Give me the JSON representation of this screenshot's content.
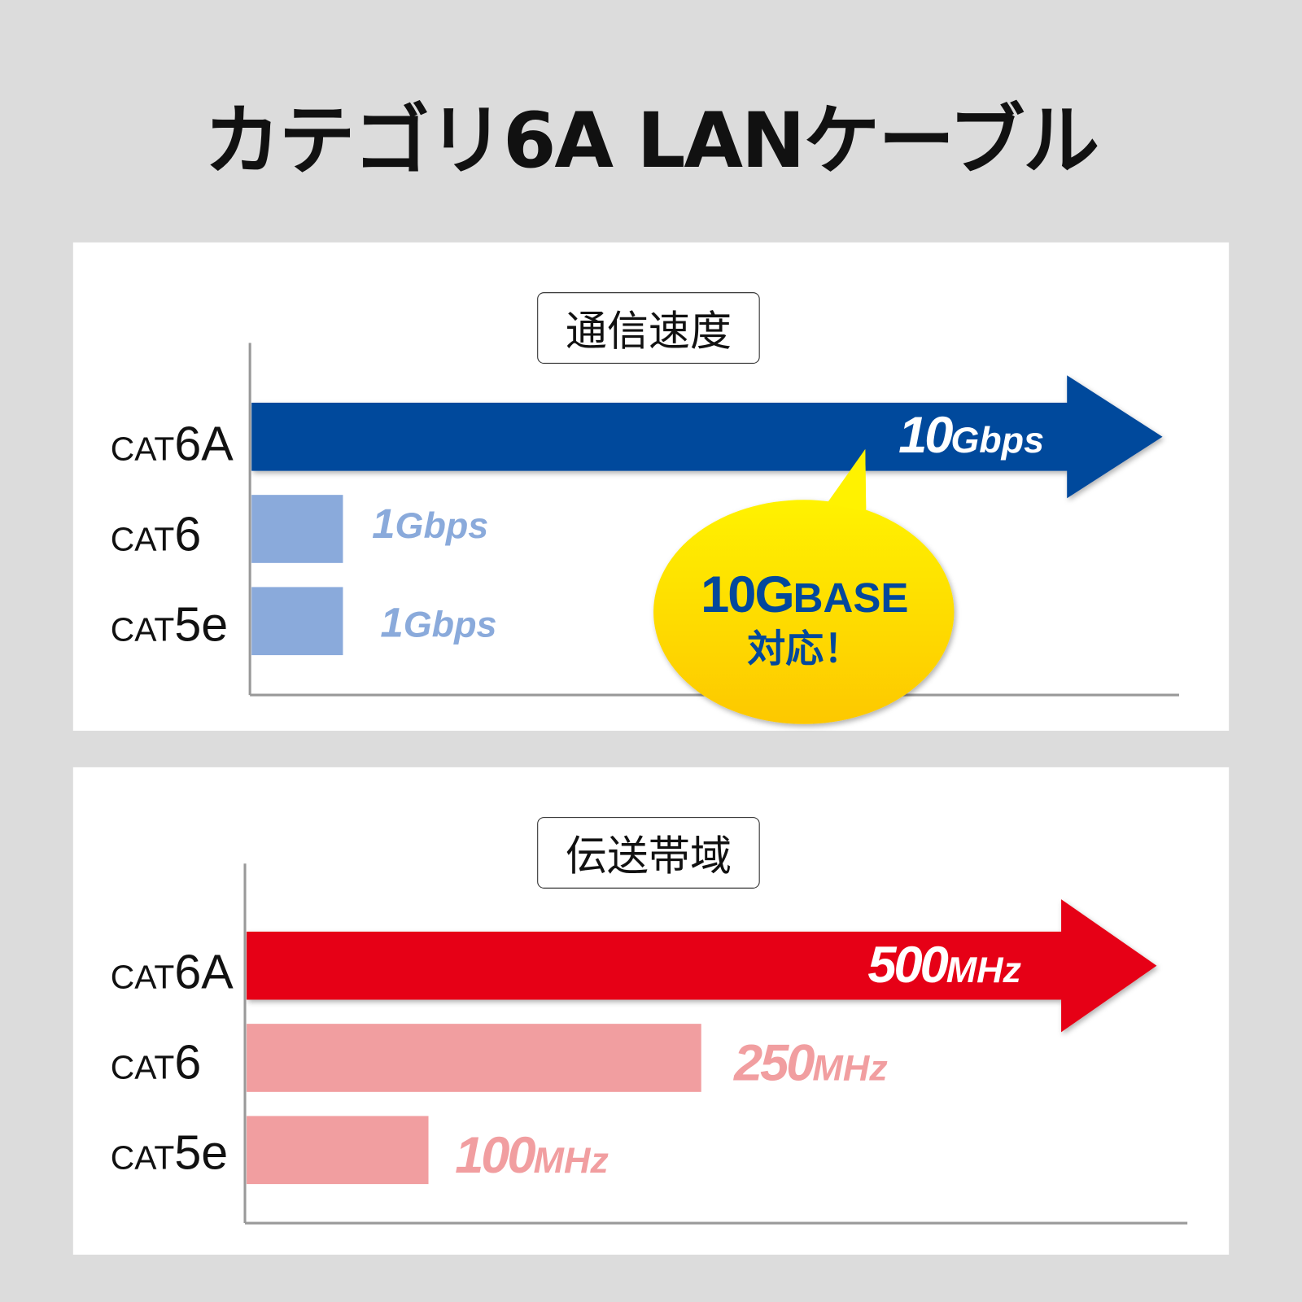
{
  "title": "カテゴリ6A LANケーブル",
  "colors": {
    "background": "#dcdcdc",
    "speed_main": "#03489c",
    "speed_other": "#8aaadb",
    "band_main": "#e60012",
    "band_other": "#f19ea0",
    "bubble_top": "#fff200",
    "bubble_bottom": "#fdc800"
  },
  "bubble": {
    "line1_num": "10G",
    "line1_word": "BASE",
    "line2": "対応！"
  },
  "chart_data": [
    {
      "type": "bar",
      "title": "通信速度",
      "orientation": "horizontal",
      "categories": [
        {
          "prefix": "CAT",
          "suffix": "6A"
        },
        {
          "prefix": "CAT",
          "suffix": "6"
        },
        {
          "prefix": "CAT",
          "suffix": "5e"
        }
      ],
      "values": [
        10,
        1,
        1
      ],
      "unit": "Gbps",
      "labels": [
        {
          "num": "10",
          "unit": "Gbps"
        },
        {
          "num": "1",
          "unit": "Gbps"
        },
        {
          "num": "1",
          "unit": "Gbps"
        }
      ]
    },
    {
      "type": "bar",
      "title": "伝送帯域",
      "orientation": "horizontal",
      "categories": [
        {
          "prefix": "CAT",
          "suffix": "6A"
        },
        {
          "prefix": "CAT",
          "suffix": "6"
        },
        {
          "prefix": "CAT",
          "suffix": "5e"
        }
      ],
      "values": [
        500,
        250,
        100
      ],
      "unit": "MHz",
      "labels": [
        {
          "num": "500",
          "unit": "MHz"
        },
        {
          "num": "250",
          "unit": "MHz"
        },
        {
          "num": "100",
          "unit": "MHz"
        }
      ]
    }
  ]
}
